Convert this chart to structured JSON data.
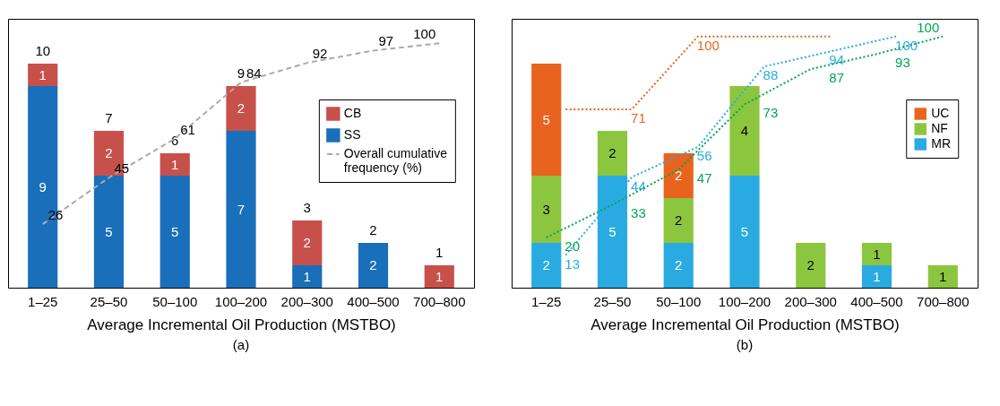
{
  "chart_data": [
    {
      "type": "bar",
      "stacked": true,
      "tick_labels": "x",
      "data_labels": true,
      "legend": "right",
      "grid": false,
      "xlabel": "Average Incremental Oil Production (MSTBO)",
      "annotations": [
        "(a)"
      ],
      "categories": [
        "1–25",
        "25–50",
        "50–100",
        "100–200",
        "200–300",
        "400–500",
        "700–800"
      ],
      "ylim": [
        0,
        12
      ],
      "y2lim": [
        0,
        110
      ],
      "totals": [
        "10",
        "7",
        "6",
        "9",
        "3",
        "2",
        "1"
      ],
      "series": [
        {
          "name": "SS",
          "color": "#1a6fba",
          "values": [
            9,
            5,
            5,
            7,
            1,
            2,
            null
          ]
        },
        {
          "name": "CB",
          "color": "#c8504b",
          "values": [
            1,
            2,
            1,
            2,
            2,
            null,
            1
          ]
        },
        {
          "name": "Overall cumulative frequency (%)",
          "type": "line",
          "axis": "y2",
          "color": "#aaaaaa",
          "line_style": "dashed",
          "values": [
            26,
            45,
            61,
            84,
            92,
            97,
            100
          ]
        }
      ]
    },
    {
      "type": "bar",
      "stacked": true,
      "tick_labels": "x",
      "data_labels": true,
      "legend": "right",
      "grid": false,
      "xlabel": "Average Incremental Oil Production (MSTBO)",
      "annotations": [
        "(b)"
      ],
      "categories": [
        "1–25",
        "25–50",
        "50–100",
        "100–200",
        "200–300",
        "400–500",
        "700–800"
      ],
      "ylim": [
        0,
        12
      ],
      "y2lim": [
        0,
        107
      ],
      "series": [
        {
          "name": "MR",
          "color": "#29abe2",
          "values": [
            2,
            5,
            2,
            5,
            null,
            1,
            null
          ]
        },
        {
          "name": "NF",
          "color": "#8cc63f",
          "values": [
            3,
            2,
            2,
            4,
            2,
            1,
            1
          ]
        },
        {
          "name": "UC",
          "color": "#e8641e",
          "values": [
            5,
            null,
            2,
            null,
            null,
            null,
            null
          ]
        },
        {
          "type": "line",
          "axis": "y2",
          "color": "#e8641e",
          "line_style": "dotted",
          "values": [
            71,
            71,
            100,
            100,
            100,
            null,
            null
          ],
          "value_labels": [
            null,
            "71",
            "100",
            null,
            null,
            null,
            null
          ]
        },
        {
          "type": "line",
          "axis": "y2",
          "color": "#29abe2",
          "line_style": "dotted",
          "values": [
            13,
            44,
            56,
            88,
            94,
            100,
            null
          ],
          "value_labels": [
            "13",
            "44",
            "56",
            "88",
            "94",
            "100",
            null
          ]
        },
        {
          "type": "line",
          "axis": "y2",
          "color": "#00a651",
          "line_style": "dotted",
          "values": [
            20,
            33,
            47,
            73,
            87,
            93,
            100
          ],
          "value_labels": [
            "20",
            "33",
            "47",
            "73",
            "87",
            "93",
            "100"
          ]
        }
      ]
    }
  ]
}
